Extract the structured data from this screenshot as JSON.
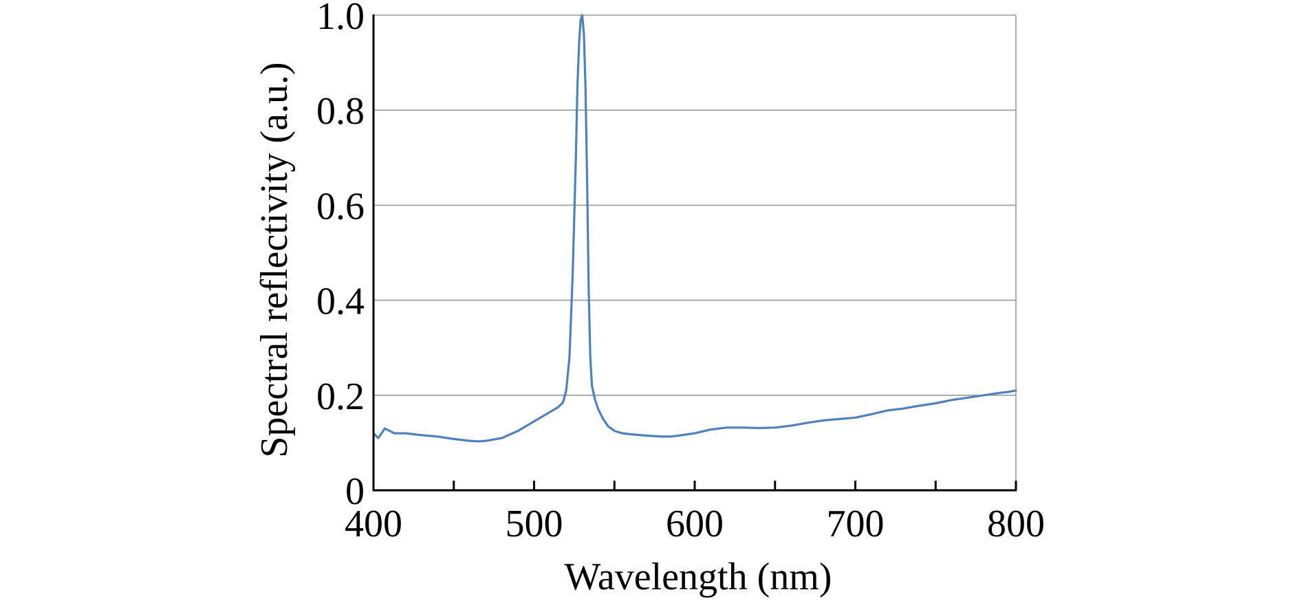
{
  "chart_data": {
    "type": "line",
    "title": "",
    "xlabel": "Wavelength (nm)",
    "ylabel": "Spectral reflectivity (a.u.)",
    "xlim": [
      400,
      800
    ],
    "ylim": [
      0,
      1.0
    ],
    "x_ticks": [
      400,
      500,
      600,
      700,
      800
    ],
    "x_tick_labels": [
      "400",
      "500",
      "600",
      "700",
      "800"
    ],
    "y_ticks": [
      0,
      0.2,
      0.4,
      0.6,
      0.8,
      1.0
    ],
    "y_tick_labels": [
      "0",
      "0.2",
      "0.4",
      "0.6",
      "0.8",
      "1.0"
    ],
    "x_minor_ticks": [
      450,
      550,
      650,
      750
    ],
    "grid": "horizontal",
    "legend": "none",
    "colors": {
      "series": "#4f81bd",
      "grid": "#9a9a9a",
      "axis": "#000000"
    },
    "series": [
      {
        "name": "Spectral reflectivity",
        "x": [
          400,
          403,
          405,
          407,
          410,
          413,
          416,
          420,
          425,
          430,
          440,
          450,
          460,
          465,
          470,
          480,
          490,
          500,
          505,
          510,
          515,
          518,
          520,
          522,
          524,
          526,
          527,
          528,
          529,
          530,
          531,
          532,
          533,
          534,
          535,
          536,
          538,
          540,
          543,
          546,
          550,
          555,
          560,
          570,
          580,
          585,
          590,
          600,
          610,
          620,
          630,
          640,
          650,
          660,
          670,
          680,
          690,
          700,
          710,
          720,
          730,
          740,
          750,
          760,
          770,
          780,
          790,
          795,
          800
        ],
        "y": [
          0.12,
          0.11,
          0.12,
          0.13,
          0.125,
          0.12,
          0.12,
          0.12,
          0.118,
          0.116,
          0.113,
          0.108,
          0.104,
          0.103,
          0.104,
          0.11,
          0.125,
          0.145,
          0.155,
          0.165,
          0.175,
          0.185,
          0.21,
          0.28,
          0.45,
          0.7,
          0.85,
          0.94,
          0.99,
          1.0,
          0.96,
          0.85,
          0.65,
          0.42,
          0.28,
          0.22,
          0.19,
          0.17,
          0.15,
          0.135,
          0.125,
          0.12,
          0.118,
          0.115,
          0.113,
          0.113,
          0.115,
          0.12,
          0.128,
          0.132,
          0.132,
          0.131,
          0.132,
          0.136,
          0.142,
          0.147,
          0.15,
          0.153,
          0.16,
          0.168,
          0.172,
          0.178,
          0.183,
          0.19,
          0.195,
          0.2,
          0.205,
          0.207,
          0.21
        ]
      }
    ]
  }
}
